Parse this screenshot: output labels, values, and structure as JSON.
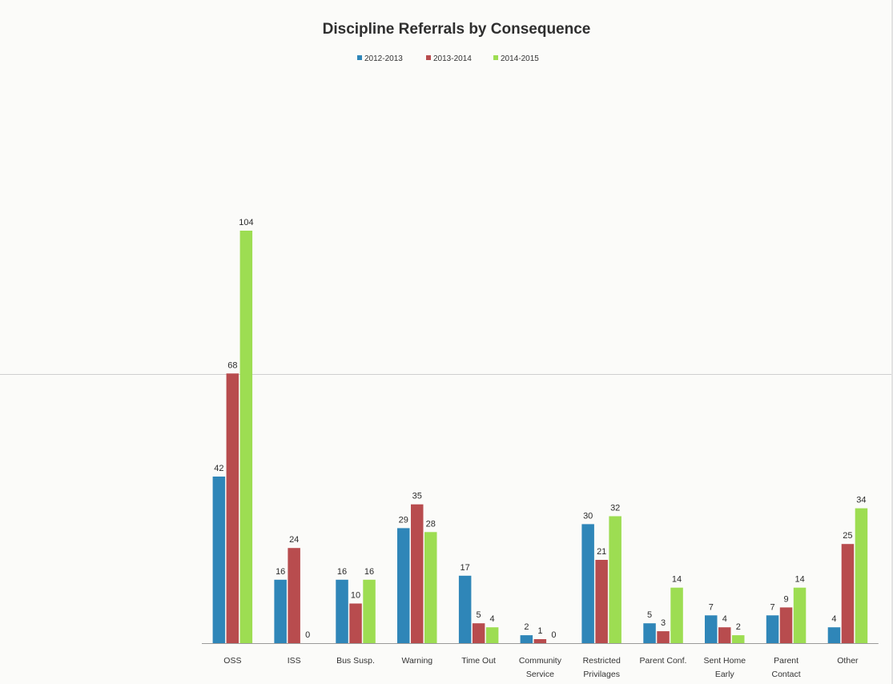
{
  "chart_data": {
    "type": "bar",
    "title": "Discipline Referrals by Consequence",
    "xlabel": "",
    "ylabel": "",
    "ylim": [
      0,
      104
    ],
    "grid": false,
    "legend_position": "top-center",
    "categories": [
      [
        "OSS"
      ],
      [
        "ISS"
      ],
      [
        "Bus Susp."
      ],
      [
        "Warning"
      ],
      [
        "Time Out"
      ],
      [
        "Community",
        "Service"
      ],
      [
        "Restricted",
        "Privilages"
      ],
      [
        "Parent Conf."
      ],
      [
        "Sent Home",
        "Early"
      ],
      [
        "Parent",
        "Contact"
      ],
      [
        "Other"
      ]
    ],
    "series": [
      {
        "name": "2012-2013",
        "color": "#2f86b8",
        "values": [
          42,
          16,
          16,
          29,
          17,
          2,
          30,
          5,
          7,
          7,
          4
        ]
      },
      {
        "name": "2013-2014",
        "color": "#b84c4e",
        "values": [
          68,
          24,
          10,
          35,
          5,
          1,
          21,
          3,
          4,
          9,
          25
        ]
      },
      {
        "name": "2014-2015",
        "color": "#9ddd52",
        "values": [
          104,
          0,
          16,
          28,
          4,
          0,
          32,
          14,
          2,
          14,
          34
        ]
      }
    ]
  }
}
